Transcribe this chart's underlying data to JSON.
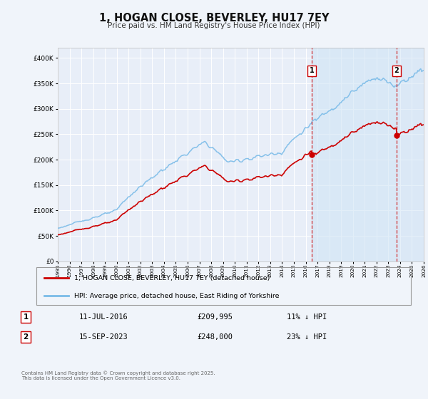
{
  "title": "1, HOGAN CLOSE, BEVERLEY, HU17 7EY",
  "subtitle": "Price paid vs. HM Land Registry's House Price Index (HPI)",
  "legend_line1": "1, HOGAN CLOSE, BEVERLEY, HU17 7EY (detached house)",
  "legend_line2": "HPI: Average price, detached house, East Riding of Yorkshire",
  "transaction1": {
    "label": "1",
    "date": "11-JUL-2016",
    "price": "£209,995",
    "note": "11% ↓ HPI"
  },
  "transaction2": {
    "label": "2",
    "date": "15-SEP-2023",
    "price": "£248,000",
    "note": "23% ↓ HPI"
  },
  "footnote": "Contains HM Land Registry data © Crown copyright and database right 2025.\nThis data is licensed under the Open Government Licence v3.0.",
  "hpi_color": "#7abbe8",
  "price_color": "#cc0000",
  "vline_color": "#cc0000",
  "shade_color": "#d0e4f5",
  "background_color": "#f0f4fa",
  "plot_bg_color": "#e8eef8",
  "grid_color": "#ffffff",
  "ylim": [
    0,
    420000
  ],
  "yticks": [
    0,
    50000,
    100000,
    150000,
    200000,
    250000,
    300000,
    350000,
    400000
  ],
  "xstart_year": 1995,
  "xend_year": 2026,
  "vline1_year": 2016.53,
  "vline2_year": 2023.71,
  "purchase1_price": 52000,
  "purchase2_price": 209995,
  "purchase3_price": 248000
}
